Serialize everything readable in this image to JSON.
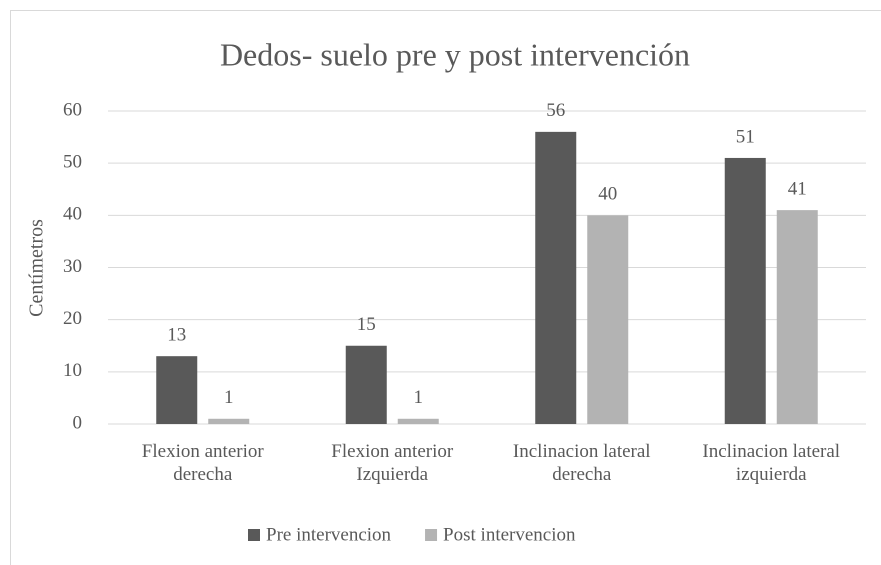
{
  "chart_data": {
    "type": "bar",
    "title": "Dedos- suelo pre y post intervención",
    "y_label": "Centímetros",
    "categories": [
      "Flexion anterior derecha",
      "Flexion anterior Izquierda",
      "Inclinacion lateral derecha",
      "Inclinacion lateral izquierda"
    ],
    "series": [
      {
        "name": "Pre intervencion",
        "color": "#595959",
        "values": [
          13,
          15,
          56,
          51
        ]
      },
      {
        "name": "Post intervencion",
        "color": "#b3b3b3",
        "values": [
          1,
          1,
          40,
          41
        ]
      }
    ],
    "ylim": [
      0,
      60
    ],
    "yticks": [
      0,
      10,
      20,
      30,
      40,
      50,
      60
    ],
    "grid": true,
    "legend": "bottom"
  }
}
